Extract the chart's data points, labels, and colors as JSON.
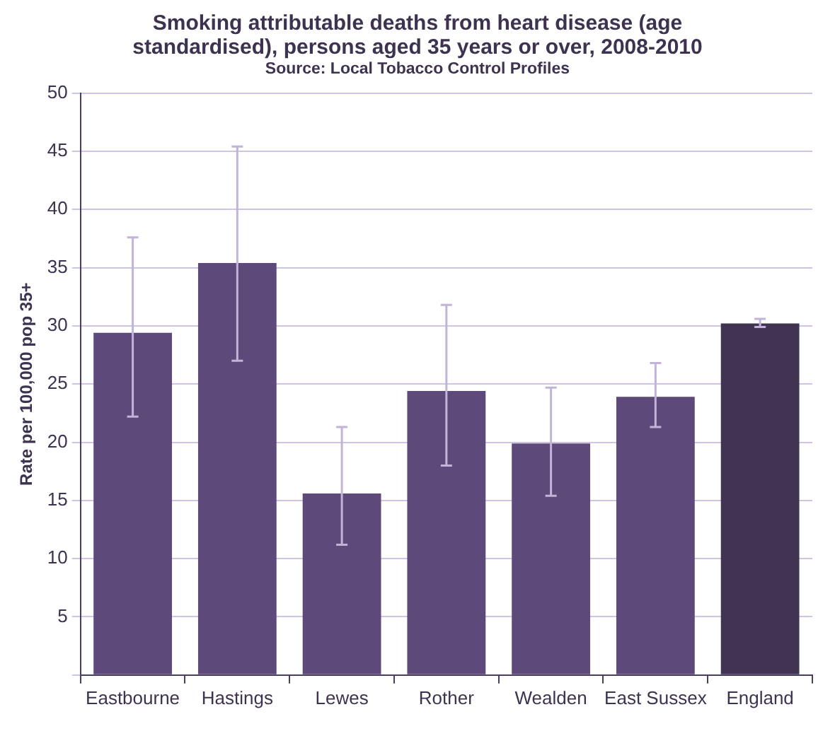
{
  "chart_data": {
    "type": "bar",
    "title": "Smoking attributable deaths from heart disease (age standardised), persons aged 35 years or over, 2008-2010",
    "subtitle": "Source: Local Tobacco Control Profiles",
    "ylabel": "Rate per 100,000 pop 35+",
    "categories": [
      "Eastbourne",
      "Hastings",
      "Lewes",
      "Rother",
      "Wealden",
      "East Sussex",
      "England"
    ],
    "values": [
      29.4,
      35.4,
      15.6,
      24.4,
      19.9,
      23.9,
      30.2
    ],
    "colors": [
      "#5e4a7a",
      "#5e4a7a",
      "#5e4a7a",
      "#5e4a7a",
      "#5e4a7a",
      "#5e4a7a",
      "#413352"
    ],
    "errors": [
      [
        22.2,
        37.6
      ],
      [
        27.0,
        45.4
      ],
      [
        11.2,
        21.3
      ],
      [
        18.0,
        31.8
      ],
      [
        15.4,
        24.7
      ],
      [
        21.3,
        26.8
      ],
      [
        29.9,
        30.6
      ]
    ],
    "ylim": [
      0,
      50
    ],
    "yticks": [
      {
        "value": 0,
        "label": null
      },
      5,
      10,
      15,
      20,
      25,
      30,
      35,
      40,
      45,
      50
    ],
    "grid": "y",
    "legend": false
  }
}
